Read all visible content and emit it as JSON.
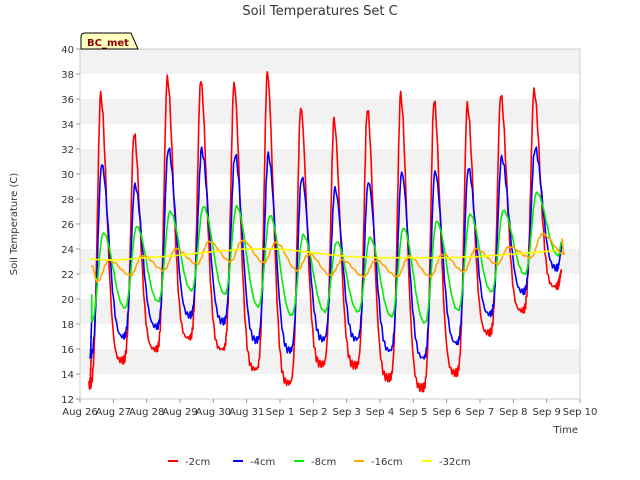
{
  "chart_data": {
    "type": "line",
    "title": "Soil Temperatures Set C",
    "xlabel": "Time",
    "ylabel": "Soil Temperature (C)",
    "badge": "BC_met",
    "ylim": [
      12,
      40
    ],
    "yticks": [
      12,
      14,
      16,
      18,
      20,
      22,
      24,
      26,
      28,
      30,
      32,
      34,
      36,
      38,
      40
    ],
    "xlim": [
      0,
      15
    ],
    "xticks": [
      0,
      1,
      2,
      3,
      4,
      5,
      6,
      7,
      8,
      9,
      10,
      11,
      12,
      13,
      14,
      15
    ],
    "xtick_labels": [
      "Aug 26",
      "Aug 27",
      "Aug 28",
      "Aug 29",
      "Aug 30",
      "Aug 31",
      "Sep 1",
      "Sep 2",
      "Sep 3",
      "Sep 4",
      "Sep 5",
      "Sep 6",
      "Sep 7",
      "Sep 8",
      "Sep 9",
      "Sep 10"
    ],
    "grid": "horizontal bands",
    "legend_position": "bottom",
    "series": [
      {
        "name": "-2cm",
        "color": "#ff0000",
        "mins": [
          13.1,
          15.1,
          16.0,
          16.9,
          16.0,
          14.4,
          13.3,
          14.8,
          14.7,
          13.7,
          12.9,
          14.1,
          17.3,
          19.1,
          21.0
        ],
        "maxs": [
          36.3,
          33.3,
          37.7,
          37.5,
          37.3,
          38.1,
          35.4,
          34.3,
          35.3,
          36.3,
          36.0,
          35.5,
          36.4,
          36.7
        ],
        "start": 16.0,
        "end": 22.3
      },
      {
        "name": "-4cm",
        "color": "#0000ff",
        "mins": [
          15.4,
          17.0,
          17.8,
          18.7,
          18.2,
          16.7,
          15.9,
          16.8,
          16.8,
          15.9,
          15.3,
          16.5,
          18.8,
          20.6,
          22.5
        ],
        "maxs": [
          30.8,
          29.1,
          32.1,
          31.9,
          31.6,
          31.5,
          29.8,
          28.8,
          29.4,
          30.1,
          30.2,
          30.5,
          31.3,
          32.1
        ],
        "start": 18.2,
        "end": 24.1
      },
      {
        "name": "-8cm",
        "color": "#00ee00",
        "mins": [
          18.2,
          19.3,
          19.8,
          20.7,
          20.4,
          19.4,
          18.7,
          19.0,
          19.0,
          18.6,
          18.1,
          19.1,
          20.6,
          22.0,
          23.5
        ],
        "maxs": [
          25.3,
          25.8,
          27.0,
          27.4,
          27.4,
          26.7,
          25.1,
          24.6,
          24.9,
          25.7,
          26.2,
          26.8,
          27.1,
          28.5
        ],
        "start": 20.4,
        "end": 24.6
      },
      {
        "name": "-16cm",
        "color": "#ffa500",
        "mins": [
          21.4,
          21.9,
          22.3,
          22.8,
          23.0,
          22.9,
          22.3,
          21.9,
          21.8,
          21.8,
          21.8,
          22.2,
          22.8,
          23.3,
          23.6
        ],
        "maxs": [
          23.1,
          23.5,
          24.0,
          24.6,
          24.7,
          24.5,
          23.6,
          23.1,
          23.1,
          23.4,
          23.6,
          24.0,
          24.2,
          25.2
        ],
        "start": 22.7,
        "end": 24.8
      },
      {
        "name": "-32cm",
        "color": "#ffff00",
        "points": [
          [
            0.3,
            23.2
          ],
          [
            1.0,
            23.1
          ],
          [
            2.0,
            23.3
          ],
          [
            3.0,
            23.5
          ],
          [
            4.0,
            23.8
          ],
          [
            5.0,
            24.0
          ],
          [
            6.0,
            24.0
          ],
          [
            7.0,
            23.7
          ],
          [
            8.0,
            23.4
          ],
          [
            9.0,
            23.3
          ],
          [
            10.0,
            23.3
          ],
          [
            11.0,
            23.3
          ],
          [
            12.0,
            23.4
          ],
          [
            13.0,
            23.6
          ],
          [
            14.0,
            23.8
          ],
          [
            14.3,
            23.9
          ]
        ]
      }
    ]
  }
}
